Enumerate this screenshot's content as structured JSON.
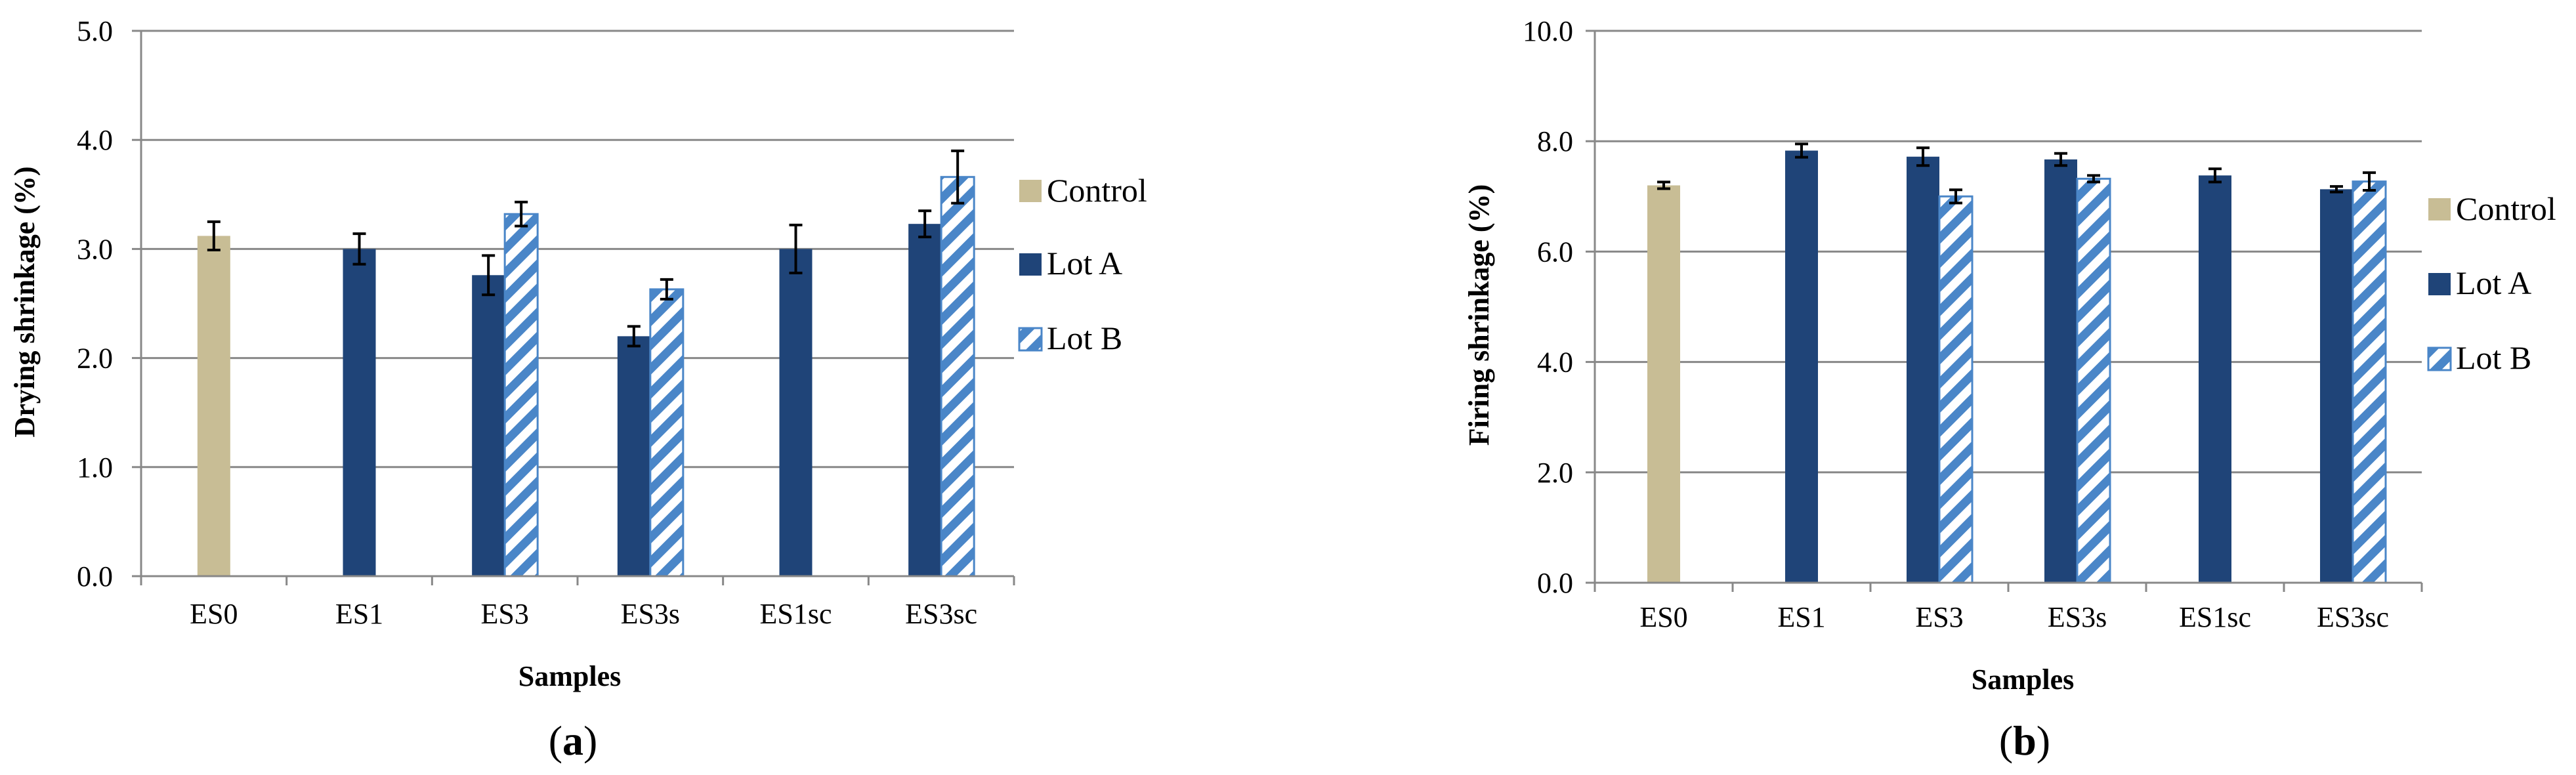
{
  "colors": {
    "control": "#c8bd95",
    "lot_a": "#1f4478",
    "lot_b_stripe": "#4a86c8",
    "lot_b_bg": "#ffffff",
    "grid": "#888888",
    "axis": "#888888",
    "error_bar": "#000000"
  },
  "chart_data": [
    {
      "type": "bar",
      "panel": {
        "open": "(",
        "letter": "a",
        "close": ")"
      },
      "xlabel": "Samples",
      "ylabel": "Drying shrinkage (%)",
      "ylim": [
        0,
        5
      ],
      "yticks": [
        0,
        1,
        2,
        3,
        4,
        5
      ],
      "ytick_labels": [
        "0.0",
        "1.0",
        "2.0",
        "3.0",
        "4.0",
        "5.0"
      ],
      "grid": true,
      "legend_position": "right",
      "categories": [
        "ES0",
        "ES1",
        "ES3",
        "ES3s",
        "ES1sc",
        "ES3sc"
      ],
      "series": [
        {
          "name": "Control",
          "key": "control",
          "values": [
            3.12,
            null,
            null,
            null,
            null,
            null
          ],
          "errors": [
            0.13,
            null,
            null,
            null,
            null,
            null
          ]
        },
        {
          "name": "Lot A",
          "key": "lot_a",
          "values": [
            null,
            3.0,
            2.76,
            2.2,
            3.0,
            3.23
          ],
          "errors": [
            null,
            0.14,
            0.18,
            0.09,
            0.22,
            0.12
          ]
        },
        {
          "name": "Lot B",
          "key": "lot_b",
          "values": [
            null,
            null,
            3.32,
            2.63,
            null,
            3.66
          ],
          "errors": [
            null,
            null,
            0.11,
            0.09,
            null,
            0.24
          ]
        }
      ]
    },
    {
      "type": "bar",
      "panel": {
        "open": "(",
        "letter": "b",
        "close": ")"
      },
      "xlabel": "Samples",
      "ylabel": "Firing shrinkage (%)",
      "ylim": [
        0,
        10
      ],
      "yticks": [
        0,
        2,
        4,
        6,
        8,
        10
      ],
      "ytick_labels": [
        "0.0",
        "2.0",
        "4.0",
        "6.0",
        "8.0",
        "10.0"
      ],
      "grid": true,
      "legend_position": "right",
      "categories": [
        "ES0",
        "ES1",
        "ES3",
        "ES3s",
        "ES1sc",
        "ES3sc"
      ],
      "series": [
        {
          "name": "Control",
          "key": "control",
          "values": [
            7.2,
            null,
            null,
            null,
            null,
            null
          ],
          "errors": [
            0.06,
            null,
            null,
            null,
            null,
            null
          ]
        },
        {
          "name": "Lot A",
          "key": "lot_a",
          "values": [
            null,
            7.83,
            7.72,
            7.67,
            7.38,
            7.13
          ],
          "errors": [
            null,
            0.12,
            0.16,
            0.11,
            0.12,
            0.05
          ]
        },
        {
          "name": "Lot B",
          "key": "lot_b",
          "values": [
            null,
            null,
            7.0,
            7.32,
            null,
            7.27
          ],
          "errors": [
            null,
            null,
            0.12,
            0.06,
            null,
            0.16
          ]
        }
      ]
    }
  ]
}
